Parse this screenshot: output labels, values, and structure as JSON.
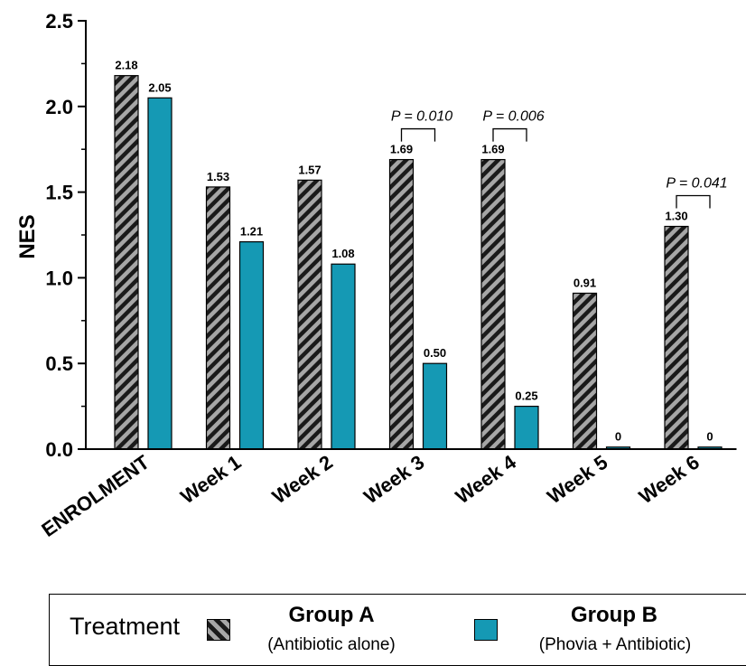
{
  "chart_data": {
    "type": "bar",
    "ylabel": "NES",
    "ylim": [
      0,
      2.5
    ],
    "yticks": [
      "0.0",
      "0.5",
      "1.0",
      "1.5",
      "2.0",
      "2.5"
    ],
    "categories": [
      "ENROLMENT",
      "Week 1",
      "Week 2",
      "Week 3",
      "Week 4",
      "Week 5",
      "Week 6"
    ],
    "series": [
      {
        "name": "Group A",
        "values": [
          2.18,
          1.53,
          1.57,
          1.69,
          1.69,
          0.91,
          1.3
        ],
        "labels": [
          "2.18",
          "1.53",
          "1.57",
          "1.69",
          "1.69",
          "0.91",
          "1.30"
        ],
        "color": "#a6a6a6",
        "pattern": "diagonal-stripes"
      },
      {
        "name": "Group B",
        "values": [
          2.05,
          1.21,
          1.08,
          0.5,
          0.25,
          0,
          0
        ],
        "labels": [
          "2.05",
          "1.21",
          "1.08",
          "0.50",
          "0.25",
          "0",
          "0"
        ],
        "color": "#1599b4"
      }
    ],
    "annotations": [
      {
        "category_index": 3,
        "text": "P = 0.010"
      },
      {
        "category_index": 4,
        "text": "P = 0.006"
      },
      {
        "category_index": 6,
        "text": "P = 0.041"
      }
    ],
    "legend": {
      "title": "Treatment",
      "placement": "bottom",
      "entries": [
        {
          "name": "Group A",
          "sub": "(Antibiotic alone)"
        },
        {
          "name": "Group B",
          "sub": "(Phovia + Antibiotic)"
        }
      ]
    }
  }
}
